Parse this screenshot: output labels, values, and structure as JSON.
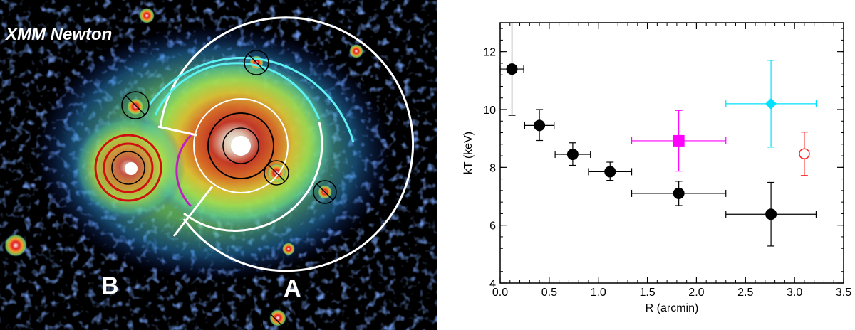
{
  "image_panel": {
    "instrument_label": "XMM Newton",
    "subcluster_a_label": "A",
    "subcluster_b_label": "B"
  },
  "chart_data": {
    "type": "scatter",
    "xlabel": "R (arcmin)",
    "ylabel": "kT (keV)",
    "xlim": [
      0,
      3.5
    ],
    "ylim": [
      4,
      13
    ],
    "xticks": [
      "0.0",
      "0.5",
      "1.0",
      "1.5",
      "2.0",
      "2.5",
      "3.0",
      "3.5"
    ],
    "yticks": [
      "4",
      "6",
      "8",
      "10",
      "12"
    ],
    "grid": false,
    "series": [
      {
        "color": "#000000",
        "marker": "filled-circle",
        "points": [
          {
            "x": 0.12,
            "y": 11.4,
            "xerr": [
              0.12,
              0.12
            ],
            "yerr": [
              1.6,
              1.6
            ]
          },
          {
            "x": 0.4,
            "y": 9.45,
            "xerr": [
              0.15,
              0.15
            ],
            "yerr": [
              0.52,
              0.55
            ]
          },
          {
            "x": 0.74,
            "y": 8.45,
            "xerr": [
              0.18,
              0.18
            ],
            "yerr": [
              0.38,
              0.4
            ]
          },
          {
            "x": 1.12,
            "y": 7.85,
            "xerr": [
              0.22,
              0.22
            ],
            "yerr": [
              0.3,
              0.33
            ]
          },
          {
            "x": 1.82,
            "y": 7.1,
            "xerr": [
              0.48,
              0.48
            ],
            "yerr": [
              0.42,
              0.42
            ]
          },
          {
            "x": 2.76,
            "y": 6.38,
            "xerr": [
              0.46,
              0.46
            ],
            "yerr": [
              1.1,
              1.1
            ]
          }
        ]
      },
      {
        "color": "#ff00ff",
        "marker": "filled-square",
        "points": [
          {
            "x": 1.82,
            "y": 8.92,
            "xerr": [
              0.48,
              0.48
            ],
            "yerr": [
              1.05,
              1.05
            ]
          }
        ]
      },
      {
        "color": "#00e0ff",
        "marker": "filled-diamond",
        "points": [
          {
            "x": 2.76,
            "y": 10.2,
            "xerr": [
              0.46,
              0.46
            ],
            "yerr": [
              1.5,
              1.5
            ]
          }
        ]
      },
      {
        "color": "#ff2020",
        "marker": "open-circle",
        "points": [
          {
            "x": 3.1,
            "y": 8.47,
            "xerr": [
              0,
              0
            ],
            "yerr": [
              0.75,
              0.75
            ]
          }
        ]
      }
    ]
  }
}
